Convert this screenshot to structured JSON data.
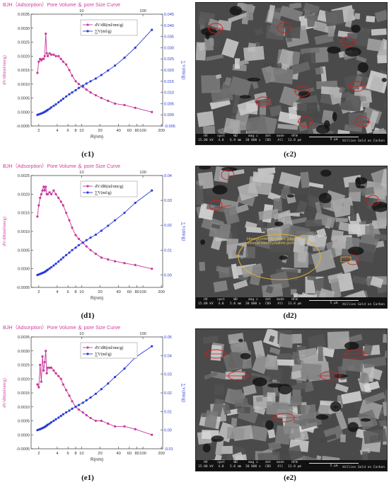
{
  "colors": {
    "title": "#d23c9a",
    "dv_series": "#c8399c",
    "sum_series": "#2a3bd6",
    "axis": "#333333",
    "sem_bg": "#3a3a3a",
    "annot_red": "#d02020",
    "annot_yellow": "#e0b030"
  },
  "chart_data": [
    {
      "id": "c1",
      "type": "line",
      "title": "BJH（Adsorption）Pore Volume ＆ pore Size Curve",
      "xlabel": "R(nm)",
      "xscale": "log",
      "xlim": [
        1.5,
        210
      ],
      "xticks": [
        2,
        4,
        6,
        8,
        10,
        20,
        40,
        60,
        80,
        100,
        200
      ],
      "xtop_ticks": [
        10,
        100
      ],
      "ylabel_left": "dV/dR(ml/nm/g)",
      "ylim_left": [
        -0.0005,
        0.0035
      ],
      "yticks_left": [
        "-0.0005",
        "0.0000",
        "0.0005",
        "0.0010",
        "0.0015",
        "0.0020",
        "0.0025",
        "0.0030",
        "0.0035"
      ],
      "ylabel_right": "∑V(ml/g)",
      "ylim_right": [
        -0.005,
        0.045
      ],
      "yticks_right": [
        "-0.005",
        "0.000",
        "0.005",
        "0.010",
        "0.015",
        "0.020",
        "0.025",
        "0.030",
        "0.035",
        "0.040",
        "0.045"
      ],
      "legend": [
        "dV/dR(ml/nm/g)",
        "∑V(ml/g)"
      ],
      "series": [
        {
          "name": "dV/dR(ml/nm/g)",
          "axis": "left",
          "x": [
            1.9,
            2.0,
            2.1,
            2.2,
            2.3,
            2.4,
            2.5,
            2.6,
            2.7,
            2.8,
            3.0,
            3.2,
            3.5,
            3.8,
            4.2,
            4.6,
            5.0,
            5.6,
            6.3,
            7.0,
            8.0,
            9.0,
            10.5,
            12,
            14,
            17,
            21,
            27,
            35,
            50,
            75,
            140
          ],
          "y": [
            0.0014,
            0.0018,
            0.0019,
            0.00185,
            0.0019,
            0.0019,
            0.002,
            0.0028,
            0.0021,
            0.002,
            0.0021,
            0.00205,
            0.00205,
            0.002,
            0.002,
            0.0019,
            0.0018,
            0.0017,
            0.0015,
            0.0013,
            0.0011,
            0.001,
            0.0009,
            0.0008,
            0.0007,
            0.0006,
            0.0005,
            0.0004,
            0.0003,
            0.00025,
            0.00015,
            0.0
          ]
        },
        {
          "name": "∑V(ml/g)",
          "axis": "right",
          "x": [
            1.9,
            2.0,
            2.1,
            2.2,
            2.3,
            2.4,
            2.5,
            2.6,
            2.7,
            2.8,
            3.0,
            3.2,
            3.5,
            3.8,
            4.2,
            4.6,
            5.0,
            5.6,
            6.3,
            7.0,
            8.0,
            9.0,
            10.5,
            12,
            14,
            17,
            21,
            27,
            35,
            50,
            75,
            140
          ],
          "y": [
            0.0,
            0.0002,
            0.0004,
            0.0006,
            0.0008,
            0.0011,
            0.0013,
            0.0016,
            0.0019,
            0.0022,
            0.0027,
            0.0033,
            0.004,
            0.0047,
            0.0056,
            0.0064,
            0.0072,
            0.0082,
            0.0092,
            0.01,
            0.011,
            0.012,
            0.013,
            0.014,
            0.015,
            0.0162,
            0.0178,
            0.0198,
            0.022,
            0.0255,
            0.03,
            0.038
          ]
        }
      ]
    },
    {
      "id": "d1",
      "type": "line",
      "title": "BJH（Adsorption）Pore Volume ＆ pore Size Curve",
      "xlabel": "R(nm)",
      "xscale": "log",
      "xlim": [
        1.5,
        210
      ],
      "xticks": [
        2,
        4,
        6,
        8,
        10,
        20,
        40,
        60,
        80,
        100,
        200
      ],
      "xtop_ticks": [
        10,
        100
      ],
      "ylabel_left": "dV/dR(ml/nm/g)",
      "ylim_left": [
        -0.0005,
        0.0025
      ],
      "yticks_left": [
        "-0.0005",
        "0.0000",
        "0.0005",
        "0.0010",
        "0.0015",
        "0.0020",
        "0.0025"
      ],
      "ylabel_right": "∑V(ml/g)",
      "ylim_right": [
        -0.005,
        0.04
      ],
      "yticks_right": [
        "0.00",
        "0.01",
        "0.02",
        "0.03",
        "0.04"
      ],
      "legend": [
        "dV/dR(ml/nm/g)",
        "∑V(ml/g)"
      ],
      "series": [
        {
          "name": "dV/dR(ml/nm/g)",
          "axis": "left",
          "x": [
            1.9,
            2.0,
            2.1,
            2.2,
            2.3,
            2.4,
            2.5,
            2.6,
            2.7,
            2.8,
            3.0,
            3.2,
            3.5,
            3.8,
            4.2,
            4.6,
            5.0,
            5.6,
            6.3,
            7.0,
            8.0,
            9.0,
            10.5,
            12,
            14,
            17,
            21,
            27,
            35,
            50,
            75,
            140
          ],
          "y": [
            0.0014,
            0.0017,
            0.0019,
            0.002,
            0.0021,
            0.0022,
            0.0021,
            0.0022,
            0.002,
            0.002,
            0.00205,
            0.002,
            0.0021,
            0.002,
            0.0019,
            0.0018,
            0.0017,
            0.0015,
            0.0013,
            0.0011,
            0.0009,
            0.0008,
            0.0007,
            0.0006,
            0.0005,
            0.0004,
            0.0003,
            0.00025,
            0.0002,
            0.00015,
            0.0001,
            0.0
          ]
        },
        {
          "name": "∑V(ml/g)",
          "axis": "right",
          "x": [
            1.9,
            2.0,
            2.1,
            2.2,
            2.3,
            2.4,
            2.5,
            2.6,
            2.7,
            2.8,
            3.0,
            3.2,
            3.5,
            3.8,
            4.2,
            4.6,
            5.0,
            5.6,
            6.3,
            7.0,
            8.0,
            9.0,
            10.5,
            12,
            14,
            17,
            21,
            27,
            35,
            50,
            75,
            140
          ],
          "y": [
            0.0,
            0.0002,
            0.0004,
            0.0006,
            0.0008,
            0.001,
            0.0012,
            0.0015,
            0.0018,
            0.0021,
            0.0026,
            0.0031,
            0.0038,
            0.0045,
            0.0054,
            0.0062,
            0.007,
            0.008,
            0.009,
            0.01,
            0.011,
            0.012,
            0.013,
            0.014,
            0.015,
            0.0162,
            0.0178,
            0.0198,
            0.022,
            0.025,
            0.029,
            0.034
          ]
        }
      ]
    },
    {
      "id": "e1",
      "type": "line",
      "title": "BJH（Adsorption）Pore Volume ＆ pore Size Curve",
      "xlabel": "R(nm)",
      "xscale": "log",
      "xlim": [
        1.5,
        210
      ],
      "xticks": [
        2,
        4,
        6,
        8,
        10,
        20,
        40,
        60,
        80,
        100,
        200
      ],
      "xtop_ticks": [
        10,
        100
      ],
      "ylabel_left": "dV/dR(ml/nm/g)",
      "ylim_left": [
        -0.0005,
        0.0035
      ],
      "yticks_left": [
        "-0.0005",
        "0.0000",
        "0.0005",
        "0.0010",
        "0.0015",
        "0.0020",
        "0.0025",
        "0.0030",
        "0.0035"
      ],
      "ylabel_right": "∑V(ml/g)",
      "ylim_right": [
        -0.01,
        0.05
      ],
      "yticks_right": [
        "-0.01",
        "0.00",
        "0.01",
        "0.02",
        "0.03",
        "0.04",
        "0.05"
      ],
      "legend": [
        "dV/dR(ml/nm/g)",
        "∑V(ml/g)"
      ],
      "series": [
        {
          "name": "dV/dR(ml/nm/g)",
          "axis": "left",
          "x": [
            1.9,
            2.0,
            2.1,
            2.2,
            2.3,
            2.4,
            2.5,
            2.6,
            2.7,
            2.8,
            3.0,
            3.2,
            3.5,
            3.8,
            4.2,
            4.6,
            5.0,
            5.6,
            6.3,
            7.0,
            8.0,
            9.0,
            10.5,
            12,
            14,
            17,
            21,
            27,
            35,
            50,
            75,
            140
          ],
          "y": [
            0.0018,
            0.0017,
            0.0025,
            0.0019,
            0.0028,
            0.0023,
            0.0026,
            0.003,
            0.0022,
            0.0024,
            0.0024,
            0.0024,
            0.0023,
            0.0022,
            0.0021,
            0.002,
            0.0018,
            0.0016,
            0.0014,
            0.0012,
            0.001,
            0.0009,
            0.0008,
            0.0007,
            0.0006,
            0.0005,
            0.0005,
            0.0004,
            0.0003,
            0.0003,
            0.0002,
            0.0
          ]
        },
        {
          "name": "∑V(ml/g)",
          "axis": "right",
          "x": [
            1.9,
            2.0,
            2.1,
            2.2,
            2.3,
            2.4,
            2.5,
            2.6,
            2.7,
            2.8,
            3.0,
            3.2,
            3.5,
            3.8,
            4.2,
            4.6,
            5.0,
            5.6,
            6.3,
            7.0,
            8.0,
            9.0,
            10.5,
            12,
            14,
            17,
            21,
            27,
            35,
            50,
            75,
            140
          ],
          "y": [
            0.0,
            0.0003,
            0.0005,
            0.0008,
            0.0011,
            0.0014,
            0.0017,
            0.0021,
            0.0025,
            0.0029,
            0.0035,
            0.0042,
            0.005,
            0.0058,
            0.0067,
            0.0076,
            0.0085,
            0.0095,
            0.0105,
            0.0115,
            0.0125,
            0.0135,
            0.0147,
            0.016,
            0.0175,
            0.0195,
            0.022,
            0.025,
            0.0285,
            0.033,
            0.039,
            0.045
          ]
        }
      ]
    }
  ],
  "captions": {
    "c1": "(c1)",
    "c2": "(c2)",
    "d1": "(d1)",
    "d2": "(d2)",
    "e1": "(e1)",
    "e2": "(e2)"
  },
  "sem_panels": [
    {
      "id": "c2",
      "bar": {
        "hv_label": "HV",
        "hv": "15.00 kV",
        "spot_label": "spot",
        "spot": "4.0",
        "wd_label": "WD",
        "wd": "6.9 mm",
        "mag_label": "mag ◻",
        "mag": "30 000 x",
        "det_label": "det",
        "det": "CBS",
        "mode_label": "mode",
        "mode": "All",
        "hfw_label": "HFW",
        "hfw": "13.8 μm",
        "scale": "5 μm",
        "coating": "Hillies Gold on Carbon"
      }
    },
    {
      "id": "d2",
      "annotation_text": "Honeycomb-like pores (clay mineral intercrystalline pores)",
      "bar": {
        "hv_label": "HV",
        "hv": "15.00 kV",
        "spot_label": "spot",
        "spot": "4.0",
        "wd_label": "WD",
        "wd": "5.0 mm",
        "mag_label": "mag ◻",
        "mag": "30 000 x",
        "det_label": "det",
        "det": "CBS",
        "mode_label": "mode",
        "mode": "All",
        "hfw_label": "HFW",
        "hfw": "13.8 μm",
        "scale": "5 μm",
        "coating": "Hillies Gold on Carbon"
      }
    },
    {
      "id": "e2",
      "bar": {
        "hv_label": "HV",
        "hv": "15.00 kV",
        "spot_label": "spot",
        "spot": "4.0",
        "wd_label": "WD",
        "wd": "5.6 mm",
        "mag_label": "mag ◻",
        "mag": "30 000 x",
        "det_label": "det",
        "det": "CBS",
        "mode_label": "mode",
        "mode": "All",
        "hfw_label": "HFW",
        "hfw": "13.8 μm",
        "scale": "5 μm",
        "coating": "Hillies Gold on Carbon"
      }
    }
  ]
}
